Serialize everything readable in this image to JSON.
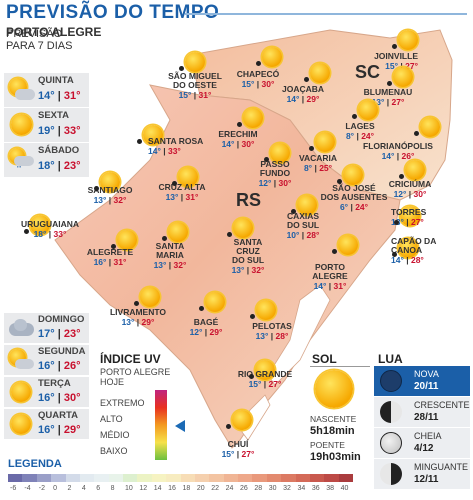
{
  "title": "PREVISÃO DO TEMPO",
  "sidebar": {
    "city": "PORTO ALEGRE",
    "line1": "PREVISÃO",
    "line2": "PARA 7 DIAS",
    "days": [
      {
        "name": "QUINTA",
        "min": "14°",
        "max": "31°",
        "icon": "sun-cloud-icon"
      },
      {
        "name": "SEXTA",
        "min": "19°",
        "max": "33°",
        "icon": "sun-icon"
      },
      {
        "name": "SÁBADO",
        "min": "18°",
        "max": "23°",
        "icon": "rain-icon"
      },
      {
        "name": "DOMINGO",
        "min": "17°",
        "max": "23°",
        "icon": "cloud-icon"
      },
      {
        "name": "SEGUNDA",
        "min": "16°",
        "max": "26°",
        "icon": "sun-cloud-icon"
      },
      {
        "name": "TERÇA",
        "min": "16°",
        "max": "30°",
        "icon": "sun-icon"
      },
      {
        "name": "QUARTA",
        "min": "16°",
        "max": "29°",
        "icon": "sun-icon"
      }
    ]
  },
  "states": {
    "rs": "RS",
    "sc": "SC"
  },
  "cities": [
    {
      "name": "JOINVILLE",
      "min": "15°",
      "max": "27°"
    },
    {
      "name": "SÃO MIGUEL\nDO OESTE",
      "min": "15°",
      "max": "31°"
    },
    {
      "name": "CHAPECÓ",
      "min": "15°",
      "max": "30°"
    },
    {
      "name": "JOAÇABA",
      "min": "14°",
      "max": "29°"
    },
    {
      "name": "BLUMENAU",
      "min": "13°",
      "max": "27°"
    },
    {
      "name": "LAGES",
      "min": "8°",
      "max": "24°"
    },
    {
      "name": "FLORIANÓPOLIS",
      "min": "14°",
      "max": "26°"
    },
    {
      "name": "SANTA ROSA",
      "min": "14°",
      "max": "33°"
    },
    {
      "name": "ERECHIM",
      "min": "14°",
      "max": "30°"
    },
    {
      "name": "VACARIA",
      "min": "8°",
      "max": "25°"
    },
    {
      "name": "PASSO\nFUNDO",
      "min": "12°",
      "max": "30°"
    },
    {
      "name": "SÃO JOSÉ\nDOS AUSENTES",
      "min": "6°",
      "max": "24°"
    },
    {
      "name": "CRICIÚMA",
      "min": "12°",
      "max": "30°"
    },
    {
      "name": "SANTIAGO",
      "min": "13°",
      "max": "32°"
    },
    {
      "name": "CRUZ ALTA",
      "min": "13°",
      "max": "31°"
    },
    {
      "name": "CAXIAS\nDO SUL",
      "min": "10°",
      "max": "28°"
    },
    {
      "name": "TORRES",
      "min": "13°",
      "max": "27°"
    },
    {
      "name": "URUGUAIANA",
      "min": "18°",
      "max": "33°"
    },
    {
      "name": "ALEGRETE",
      "min": "16°",
      "max": "31°"
    },
    {
      "name": "SANTA\nMARIA",
      "min": "13°",
      "max": "32°"
    },
    {
      "name": "SANTA\nCRUZ\nDO SUL",
      "min": "13°",
      "max": "32°"
    },
    {
      "name": "CAPÃO DA\nCANOA",
      "min": "14°",
      "max": "28°"
    },
    {
      "name": "PORTO\nALEGRE",
      "min": "14°",
      "max": "31°"
    },
    {
      "name": "LIVRAMENTO",
      "min": "13°",
      "max": "29°"
    },
    {
      "name": "BAGÉ",
      "min": "12°",
      "max": "29°"
    },
    {
      "name": "PELOTAS",
      "min": "13°",
      "max": "28°"
    },
    {
      "name": "RIO GRANDE",
      "min": "15°",
      "max": "27°"
    },
    {
      "name": "CHUÍ",
      "min": "15°",
      "max": "27°"
    }
  ],
  "uv": {
    "title": "ÍNDICE UV",
    "sub1": "PORTO ALEGRE",
    "sub2": "HOJE",
    "levels": [
      "EXTREMO",
      "ALTO",
      "MÉDIO",
      "BAIXO"
    ],
    "current_level": "ALTO",
    "colors": [
      "#c02480",
      "#e83020",
      "#f39a20",
      "#f6e14a",
      "#6cbf40"
    ]
  },
  "sol": {
    "title": "SOL",
    "rise_label": "NASCENTE",
    "rise": "5h18min",
    "set_label": "POENTE",
    "set": "19h03min"
  },
  "lua": {
    "title": "LUA",
    "phases": [
      {
        "name": "NOVA",
        "date": "20/11",
        "icon": "new-moon-icon"
      },
      {
        "name": "CRESCENTE",
        "date": "28/11",
        "icon": "waxing-moon-icon"
      },
      {
        "name": "CHEIA",
        "date": "4/12",
        "icon": "full-moon-icon"
      },
      {
        "name": "MINGUANTE",
        "date": "12/11",
        "icon": "waning-moon-icon"
      }
    ]
  },
  "legend": {
    "title": "LEGENDA",
    "ticks": [
      "-6",
      "-4",
      "-2",
      "0",
      "2",
      "4",
      "6",
      "8",
      "10",
      "12",
      "14",
      "16",
      "18",
      "20",
      "22",
      "24",
      "26",
      "28",
      "30",
      "32",
      "34",
      "36",
      "38",
      "40"
    ]
  },
  "colors": {
    "accent": "#1b5fa8",
    "max_temp": "#c8102e",
    "min_temp": "#1b5fa8"
  }
}
